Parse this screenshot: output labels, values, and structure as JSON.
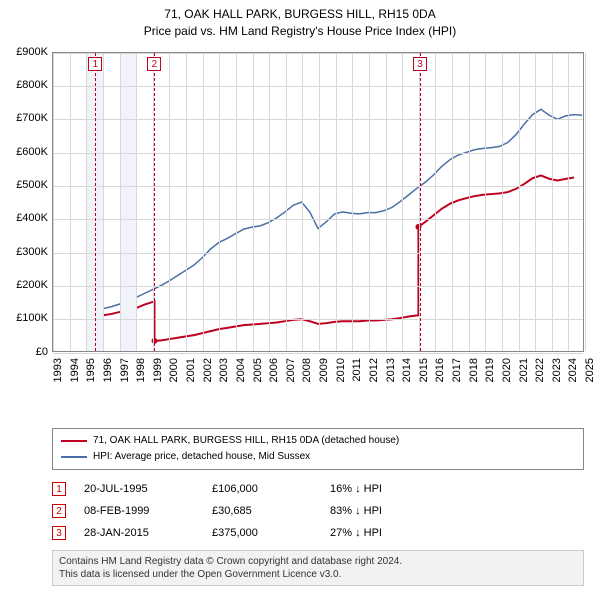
{
  "title": {
    "line1": "71, OAK HALL PARK, BURGESS HILL, RH15 0DA",
    "line2": "Price paid vs. HM Land Registry's House Price Index (HPI)"
  },
  "chart": {
    "type": "line",
    "background_color": "#ffffff",
    "grid_color": "#d8d8d8",
    "border_color": "#888888",
    "x_min": 1993,
    "x_max": 2025,
    "x_ticks": [
      1993,
      1994,
      1995,
      1996,
      1997,
      1998,
      1999,
      2000,
      2001,
      2002,
      2003,
      2004,
      2005,
      2006,
      2007,
      2008,
      2009,
      2010,
      2011,
      2012,
      2013,
      2014,
      2015,
      2016,
      2017,
      2018,
      2019,
      2020,
      2021,
      2022,
      2023,
      2024,
      2025
    ],
    "y_min": 0,
    "y_max": 900000,
    "y_ticks": [
      0,
      100000,
      200000,
      300000,
      400000,
      500000,
      600000,
      700000,
      800000,
      900000
    ],
    "y_tick_labels": [
      "£0",
      "£100K",
      "£200K",
      "£300K",
      "£400K",
      "£500K",
      "£600K",
      "£700K",
      "£800K",
      "£900K"
    ],
    "shaded_bands": [
      {
        "from": 1995.0,
        "to": 1996.0,
        "color": "#f0f4f9"
      },
      {
        "from": 1997.0,
        "to": 1998.0,
        "color": "#f0f4f9"
      }
    ],
    "markers": [
      {
        "n": "1",
        "x": 1995.55
      },
      {
        "n": "2",
        "x": 1999.1
      },
      {
        "n": "3",
        "x": 2015.08
      }
    ],
    "marker_color": "#c00020",
    "series": [
      {
        "name": "subject",
        "label": "71, OAK HALL PARK, BURGESS HILL, RH15 0DA (detached house)",
        "color": "#c00020",
        "line_width": 2,
        "marker_radius": 3,
        "data": [
          [
            1995.55,
            106000
          ],
          [
            1996.0,
            108000
          ],
          [
            1996.5,
            112000
          ],
          [
            1997.0,
            118000
          ],
          [
            1997.5,
            124000
          ],
          [
            1998.0,
            130000
          ],
          [
            1998.5,
            140000
          ],
          [
            1999.1,
            150000
          ],
          [
            1999.1,
            30685
          ],
          [
            1999.5,
            32000
          ],
          [
            2000.0,
            36000
          ],
          [
            2000.5,
            40000
          ],
          [
            2001.0,
            44000
          ],
          [
            2001.5,
            48000
          ],
          [
            2002.0,
            54000
          ],
          [
            2002.5,
            60000
          ],
          [
            2003.0,
            66000
          ],
          [
            2003.5,
            70000
          ],
          [
            2004.0,
            74000
          ],
          [
            2004.5,
            78000
          ],
          [
            2005.0,
            80000
          ],
          [
            2005.5,
            82000
          ],
          [
            2006.0,
            84000
          ],
          [
            2006.5,
            86000
          ],
          [
            2007.0,
            90000
          ],
          [
            2007.5,
            94000
          ],
          [
            2008.0,
            96000
          ],
          [
            2008.5,
            90000
          ],
          [
            2009.0,
            82000
          ],
          [
            2009.5,
            84000
          ],
          [
            2010.0,
            88000
          ],
          [
            2010.5,
            90000
          ],
          [
            2011.0,
            90000
          ],
          [
            2011.5,
            90000
          ],
          [
            2012.0,
            92000
          ],
          [
            2012.5,
            92000
          ],
          [
            2013.0,
            94000
          ],
          [
            2013.5,
            96000
          ],
          [
            2014.0,
            100000
          ],
          [
            2014.5,
            104000
          ],
          [
            2015.08,
            108000
          ],
          [
            2015.08,
            375000
          ],
          [
            2015.5,
            390000
          ],
          [
            2016.0,
            410000
          ],
          [
            2016.5,
            430000
          ],
          [
            2017.0,
            445000
          ],
          [
            2017.5,
            455000
          ],
          [
            2018.0,
            462000
          ],
          [
            2018.5,
            468000
          ],
          [
            2019.0,
            472000
          ],
          [
            2019.5,
            474000
          ],
          [
            2020.0,
            476000
          ],
          [
            2020.5,
            480000
          ],
          [
            2021.0,
            490000
          ],
          [
            2021.5,
            505000
          ],
          [
            2022.0,
            522000
          ],
          [
            2022.5,
            530000
          ],
          [
            2023.0,
            520000
          ],
          [
            2023.5,
            515000
          ],
          [
            2024.0,
            520000
          ],
          [
            2024.5,
            524000
          ]
        ]
      },
      {
        "name": "hpi",
        "label": "HPI: Average price, detached house, Mid Sussex",
        "color": "#4a6fa5",
        "line_width": 1.5,
        "data": [
          [
            1995.0,
            120000
          ],
          [
            1995.5,
            122000
          ],
          [
            1996.0,
            128000
          ],
          [
            1996.5,
            134000
          ],
          [
            1997.0,
            142000
          ],
          [
            1997.5,
            152000
          ],
          [
            1998.0,
            162000
          ],
          [
            1998.5,
            174000
          ],
          [
            1999.0,
            186000
          ],
          [
            1999.5,
            198000
          ],
          [
            2000.0,
            212000
          ],
          [
            2000.5,
            228000
          ],
          [
            2001.0,
            244000
          ],
          [
            2001.5,
            260000
          ],
          [
            2002.0,
            282000
          ],
          [
            2002.5,
            308000
          ],
          [
            2003.0,
            328000
          ],
          [
            2003.5,
            340000
          ],
          [
            2004.0,
            354000
          ],
          [
            2004.5,
            368000
          ],
          [
            2005.0,
            374000
          ],
          [
            2005.5,
            378000
          ],
          [
            2006.0,
            388000
          ],
          [
            2006.5,
            402000
          ],
          [
            2007.0,
            420000
          ],
          [
            2007.5,
            440000
          ],
          [
            2008.0,
            450000
          ],
          [
            2008.5,
            420000
          ],
          [
            2009.0,
            370000
          ],
          [
            2009.5,
            390000
          ],
          [
            2010.0,
            414000
          ],
          [
            2010.5,
            420000
          ],
          [
            2011.0,
            416000
          ],
          [
            2011.5,
            414000
          ],
          [
            2012.0,
            418000
          ],
          [
            2012.5,
            418000
          ],
          [
            2013.0,
            424000
          ],
          [
            2013.5,
            434000
          ],
          [
            2014.0,
            452000
          ],
          [
            2014.5,
            472000
          ],
          [
            2015.0,
            492000
          ],
          [
            2015.5,
            510000
          ],
          [
            2016.0,
            532000
          ],
          [
            2016.5,
            558000
          ],
          [
            2017.0,
            578000
          ],
          [
            2017.5,
            592000
          ],
          [
            2018.0,
            600000
          ],
          [
            2018.5,
            608000
          ],
          [
            2019.0,
            612000
          ],
          [
            2019.5,
            614000
          ],
          [
            2020.0,
            618000
          ],
          [
            2020.5,
            630000
          ],
          [
            2021.0,
            654000
          ],
          [
            2021.5,
            686000
          ],
          [
            2022.0,
            714000
          ],
          [
            2022.5,
            730000
          ],
          [
            2023.0,
            712000
          ],
          [
            2023.5,
            700000
          ],
          [
            2024.0,
            710000
          ],
          [
            2024.5,
            714000
          ],
          [
            2025.0,
            712000
          ]
        ]
      }
    ]
  },
  "legend": {
    "rows": [
      {
        "color": "#c00020",
        "label_bind": "chart.series.0.label"
      },
      {
        "color": "#4a6fa5",
        "label_bind": "chart.series.1.label"
      }
    ]
  },
  "events": [
    {
      "n": "1",
      "date": "20-JUL-1995",
      "amount": "£106,000",
      "pct": "16% ↓ HPI"
    },
    {
      "n": "2",
      "date": "08-FEB-1999",
      "amount": "£30,685",
      "pct": "83% ↓ HPI"
    },
    {
      "n": "3",
      "date": "28-JAN-2015",
      "amount": "£375,000",
      "pct": "27% ↓ HPI"
    }
  ],
  "footer": {
    "line1": "Contains HM Land Registry data © Crown copyright and database right 2024.",
    "line2": "This data is licensed under the Open Government Licence v3.0."
  }
}
